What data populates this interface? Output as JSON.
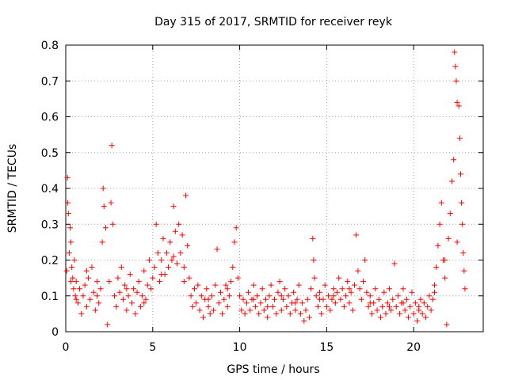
{
  "chart_data": {
    "type": "scatter",
    "title": "Day 315 of 2017, SRMTID for receiver reyk",
    "xlabel": "GPS time / hours",
    "ylabel": "SRMTID / TECUs",
    "xlim": [
      0,
      24
    ],
    "ylim": [
      0,
      0.8
    ],
    "xticks": [
      0,
      5,
      10,
      15,
      20
    ],
    "yticks": [
      0,
      0.1,
      0.2,
      0.3,
      0.4,
      0.5,
      0.6,
      0.7,
      0.8
    ],
    "xtick_labels": [
      "0",
      "5",
      "10",
      "15",
      "20"
    ],
    "ytick_labels": [
      "0",
      "0.1",
      "0.2",
      "0.3",
      "0.4",
      "0.5",
      "0.6",
      "0.7",
      "0.8"
    ],
    "grid": true,
    "marker": "plus",
    "color": "#ff0000",
    "series": [
      {
        "name": "SRMTID",
        "points": [
          [
            0.05,
            0.17
          ],
          [
            0.1,
            0.43
          ],
          [
            0.12,
            0.36
          ],
          [
            0.15,
            0.33
          ],
          [
            0.2,
            0.22
          ],
          [
            0.25,
            0.29
          ],
          [
            0.3,
            0.25
          ],
          [
            0.35,
            0.18
          ],
          [
            0.4,
            0.15
          ],
          [
            0.45,
            0.12
          ],
          [
            0.5,
            0.2
          ],
          [
            0.55,
            0.1
          ],
          [
            0.6,
            0.14
          ],
          [
            0.7,
            0.08
          ],
          [
            0.8,
            0.12
          ],
          [
            0.9,
            0.05
          ],
          [
            1.0,
            0.1
          ],
          [
            1.1,
            0.13
          ],
          [
            1.2,
            0.07
          ],
          [
            1.3,
            0.15
          ],
          [
            1.4,
            0.09
          ],
          [
            1.5,
            0.18
          ],
          [
            1.6,
            0.11
          ],
          [
            1.7,
            0.06
          ],
          [
            1.8,
            0.14
          ],
          [
            1.9,
            0.08
          ],
          [
            2.0,
            0.12
          ],
          [
            2.1,
            0.25
          ],
          [
            2.15,
            0.4
          ],
          [
            2.2,
            0.35
          ],
          [
            2.3,
            0.29
          ],
          [
            2.4,
            0.02
          ],
          [
            2.5,
            0.14
          ],
          [
            2.6,
            0.36
          ],
          [
            2.65,
            0.52
          ],
          [
            2.7,
            0.3
          ],
          [
            2.8,
            0.1
          ],
          [
            2.9,
            0.07
          ],
          [
            3.0,
            0.15
          ],
          [
            3.1,
            0.11
          ],
          [
            3.2,
            0.18
          ],
          [
            3.3,
            0.09
          ],
          [
            3.4,
            0.13
          ],
          [
            3.5,
            0.06
          ],
          [
            3.6,
            0.1
          ],
          [
            3.7,
            0.16
          ],
          [
            3.8,
            0.08
          ],
          [
            3.9,
            0.12
          ],
          [
            4.0,
            0.05
          ],
          [
            4.1,
            0.11
          ],
          [
            4.2,
            0.14
          ],
          [
            4.3,
            0.07
          ],
          [
            4.4,
            0.1
          ],
          [
            4.5,
            0.17
          ],
          [
            4.6,
            0.09
          ],
          [
            4.7,
            0.13
          ],
          [
            4.8,
            0.2
          ],
          [
            4.9,
            0.12
          ],
          [
            5.0,
            0.15
          ],
          [
            5.1,
            0.18
          ],
          [
            5.2,
            0.3
          ],
          [
            5.3,
            0.22
          ],
          [
            5.4,
            0.14
          ],
          [
            5.5,
            0.2
          ],
          [
            5.6,
            0.26
          ],
          [
            5.7,
            0.16
          ],
          [
            5.8,
            0.22
          ],
          [
            5.9,
            0.18
          ],
          [
            6.0,
            0.25
          ],
          [
            6.1,
            0.2
          ],
          [
            6.2,
            0.35
          ],
          [
            6.3,
            0.28
          ],
          [
            6.4,
            0.19
          ],
          [
            6.5,
            0.3
          ],
          [
            6.6,
            0.22
          ],
          [
            6.7,
            0.27
          ],
          [
            6.8,
            0.18
          ],
          [
            6.9,
            0.38
          ],
          [
            7.0,
            0.24
          ],
          [
            7.1,
            0.15
          ],
          [
            7.2,
            0.1
          ],
          [
            7.3,
            0.07
          ],
          [
            7.4,
            0.12
          ],
          [
            7.5,
            0.08
          ],
          [
            7.6,
            0.13
          ],
          [
            7.7,
            0.06
          ],
          [
            7.8,
            0.1
          ],
          [
            7.9,
            0.04
          ],
          [
            8.0,
            0.09
          ],
          [
            8.1,
            0.12
          ],
          [
            8.2,
            0.07
          ],
          [
            8.3,
            0.05
          ],
          [
            8.4,
            0.1
          ],
          [
            8.5,
            0.06
          ],
          [
            8.6,
            0.13
          ],
          [
            8.7,
            0.23
          ],
          [
            8.8,
            0.08
          ],
          [
            8.9,
            0.11
          ],
          [
            9.0,
            0.05
          ],
          [
            9.1,
            0.09
          ],
          [
            9.2,
            0.13
          ],
          [
            9.3,
            0.07
          ],
          [
            9.4,
            0.1
          ],
          [
            9.5,
            0.14
          ],
          [
            9.6,
            0.18
          ],
          [
            9.7,
            0.25
          ],
          [
            9.8,
            0.29
          ],
          [
            9.9,
            0.15
          ],
          [
            10.0,
            0.1
          ],
          [
            10.1,
            0.06
          ],
          [
            10.2,
            0.09
          ],
          [
            10.3,
            0.05
          ],
          [
            10.4,
            0.08
          ],
          [
            10.5,
            0.11
          ],
          [
            10.6,
            0.06
          ],
          [
            10.7,
            0.09
          ],
          [
            10.8,
            0.13
          ],
          [
            10.9,
            0.07
          ],
          [
            11.0,
            0.1
          ],
          [
            11.1,
            0.05
          ],
          [
            11.2,
            0.08
          ],
          [
            11.3,
            0.12
          ],
          [
            11.4,
            0.06
          ],
          [
            11.5,
            0.09
          ],
          [
            11.6,
            0.04
          ],
          [
            11.7,
            0.1
          ],
          [
            11.8,
            0.13
          ],
          [
            11.9,
            0.07
          ],
          [
            12.0,
            0.09
          ],
          [
            12.1,
            0.05
          ],
          [
            12.2,
            0.11
          ],
          [
            12.3,
            0.14
          ],
          [
            12.4,
            0.06
          ],
          [
            12.5,
            0.09
          ],
          [
            12.6,
            0.12
          ],
          [
            12.7,
            0.07
          ],
          [
            12.8,
            0.1
          ],
          [
            12.9,
            0.05
          ],
          [
            13.0,
            0.08
          ],
          [
            13.1,
            0.11
          ],
          [
            13.2,
            0.06
          ],
          [
            13.3,
            0.09
          ],
          [
            13.4,
            0.13
          ],
          [
            13.5,
            0.05
          ],
          [
            13.6,
            0.08
          ],
          [
            13.7,
            0.03
          ],
          [
            13.8,
            0.06
          ],
          [
            13.9,
            0.09
          ],
          [
            14.0,
            0.04
          ],
          [
            14.1,
            0.12
          ],
          [
            14.2,
            0.26
          ],
          [
            14.25,
            0.2
          ],
          [
            14.3,
            0.15
          ],
          [
            14.4,
            0.1
          ],
          [
            14.5,
            0.07
          ],
          [
            14.6,
            0.11
          ],
          [
            14.7,
            0.05
          ],
          [
            14.8,
            0.09
          ],
          [
            14.9,
            0.13
          ],
          [
            15.0,
            0.07
          ],
          [
            15.1,
            0.1
          ],
          [
            15.2,
            0.06
          ],
          [
            15.3,
            0.09
          ],
          [
            15.4,
            0.12
          ],
          [
            15.5,
            0.08
          ],
          [
            15.6,
            0.11
          ],
          [
            15.7,
            0.15
          ],
          [
            15.8,
            0.09
          ],
          [
            15.9,
            0.12
          ],
          [
            16.0,
            0.07
          ],
          [
            16.1,
            0.1
          ],
          [
            16.2,
            0.14
          ],
          [
            16.3,
            0.08
          ],
          [
            16.4,
            0.11
          ],
          [
            16.5,
            0.06
          ],
          [
            16.6,
            0.13
          ],
          [
            16.7,
            0.27
          ],
          [
            16.8,
            0.17
          ],
          [
            16.9,
            0.12
          ],
          [
            17.0,
            0.09
          ],
          [
            17.1,
            0.14
          ],
          [
            17.2,
            0.2
          ],
          [
            17.3,
            0.11
          ],
          [
            17.4,
            0.07
          ],
          [
            17.5,
            0.1
          ],
          [
            17.6,
            0.05
          ],
          [
            17.7,
            0.08
          ],
          [
            17.8,
            0.12
          ],
          [
            17.9,
            0.06
          ],
          [
            18.0,
            0.09
          ],
          [
            18.1,
            0.04
          ],
          [
            18.2,
            0.07
          ],
          [
            18.3,
            0.11
          ],
          [
            18.4,
            0.05
          ],
          [
            18.5,
            0.08
          ],
          [
            18.6,
            0.12
          ],
          [
            18.7,
            0.06
          ],
          [
            18.8,
            0.09
          ],
          [
            18.9,
            0.19
          ],
          [
            19.0,
            0.07
          ],
          [
            19.1,
            0.1
          ],
          [
            19.2,
            0.05
          ],
          [
            19.3,
            0.08
          ],
          [
            19.4,
            0.12
          ],
          [
            19.5,
            0.06
          ],
          [
            19.6,
            0.09
          ],
          [
            19.7,
            0.04
          ],
          [
            19.8,
            0.07
          ],
          [
            19.9,
            0.11
          ],
          [
            20.0,
            0.05
          ],
          [
            20.1,
            0.08
          ],
          [
            20.2,
            0.03
          ],
          [
            20.3,
            0.06
          ],
          [
            20.4,
            0.09
          ],
          [
            20.5,
            0.05
          ],
          [
            20.6,
            0.08
          ],
          [
            20.7,
            0.04
          ],
          [
            20.8,
            0.07
          ],
          [
            20.9,
            0.1
          ],
          [
            21.0,
            0.06
          ],
          [
            21.1,
            0.09
          ],
          [
            21.2,
            0.13
          ],
          [
            21.3,
            0.18
          ],
          [
            21.4,
            0.24
          ],
          [
            21.5,
            0.3
          ],
          [
            21.6,
            0.36
          ],
          [
            21.7,
            0.2
          ],
          [
            21.8,
            0.15
          ],
          [
            21.9,
            0.02
          ],
          [
            22.0,
            0.26
          ],
          [
            22.1,
            0.33
          ],
          [
            22.2,
            0.42
          ],
          [
            22.3,
            0.48
          ],
          [
            22.35,
            0.78
          ],
          [
            22.4,
            0.74
          ],
          [
            22.45,
            0.7
          ],
          [
            22.5,
            0.64
          ],
          [
            22.6,
            0.63
          ],
          [
            22.65,
            0.54
          ],
          [
            22.7,
            0.44
          ],
          [
            22.75,
            0.36
          ],
          [
            22.8,
            0.3
          ],
          [
            22.85,
            0.22
          ],
          [
            22.9,
            0.17
          ],
          [
            22.95,
            0.12
          ],
          [
            0.3,
            0.14
          ],
          [
            0.6,
            0.09
          ],
          [
            1.2,
            0.17
          ],
          [
            1.8,
            0.1
          ],
          [
            3.5,
            0.12
          ],
          [
            4.5,
            0.08
          ],
          [
            5.5,
            0.16
          ],
          [
            6.2,
            0.21
          ],
          [
            6.8,
            0.14
          ],
          [
            8.2,
            0.09
          ],
          [
            9.3,
            0.12
          ],
          [
            10.8,
            0.09
          ],
          [
            11.6,
            0.07
          ],
          [
            12.4,
            0.1
          ],
          [
            13.2,
            0.08
          ],
          [
            14.6,
            0.09
          ],
          [
            15.4,
            0.1
          ],
          [
            16.3,
            0.12
          ],
          [
            17.5,
            0.08
          ],
          [
            18.6,
            0.07
          ],
          [
            19.4,
            0.08
          ],
          [
            20.3,
            0.07
          ],
          [
            21.2,
            0.11
          ],
          [
            21.8,
            0.2
          ],
          [
            22.5,
            0.25
          ]
        ]
      }
    ]
  }
}
